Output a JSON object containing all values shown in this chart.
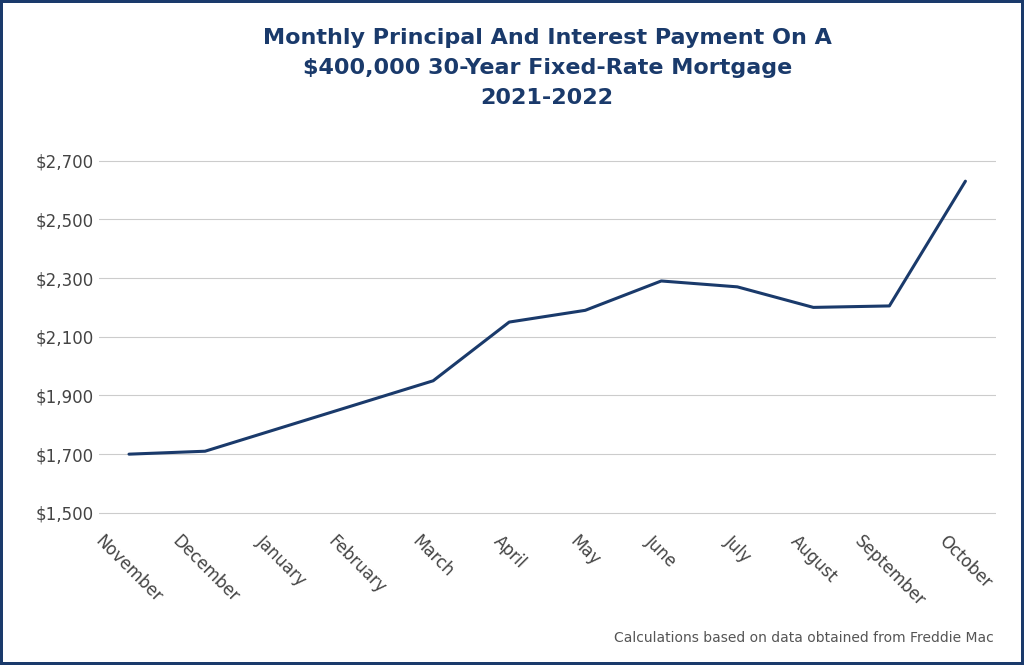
{
  "title_line1": "Monthly Principal And Interest Payment On A",
  "title_line2": "$400,000 30-Year Fixed-Rate Mortgage",
  "title_line3": "2021-2022",
  "months": [
    "November",
    "December",
    "January",
    "February",
    "March",
    "April",
    "May",
    "June",
    "July",
    "August",
    "September",
    "October"
  ],
  "values": [
    1700,
    1710,
    1790,
    1870,
    1950,
    2150,
    2190,
    2290,
    2270,
    2200,
    2205,
    2630
  ],
  "line_color": "#1a3a6b",
  "line_width": 2.2,
  "background_color": "#ffffff",
  "grid_color": "#cccccc",
  "title_color": "#1a3a6b",
  "tick_color": "#444444",
  "border_color": "#1a3a6b",
  "ylim": [
    1450,
    2800
  ],
  "yticks": [
    1500,
    1700,
    1900,
    2100,
    2300,
    2500,
    2700
  ],
  "footnote": "Calculations based on data obtained from Freddie Mac",
  "title_fontsize": 16,
  "tick_fontsize": 12,
  "footnote_fontsize": 10
}
